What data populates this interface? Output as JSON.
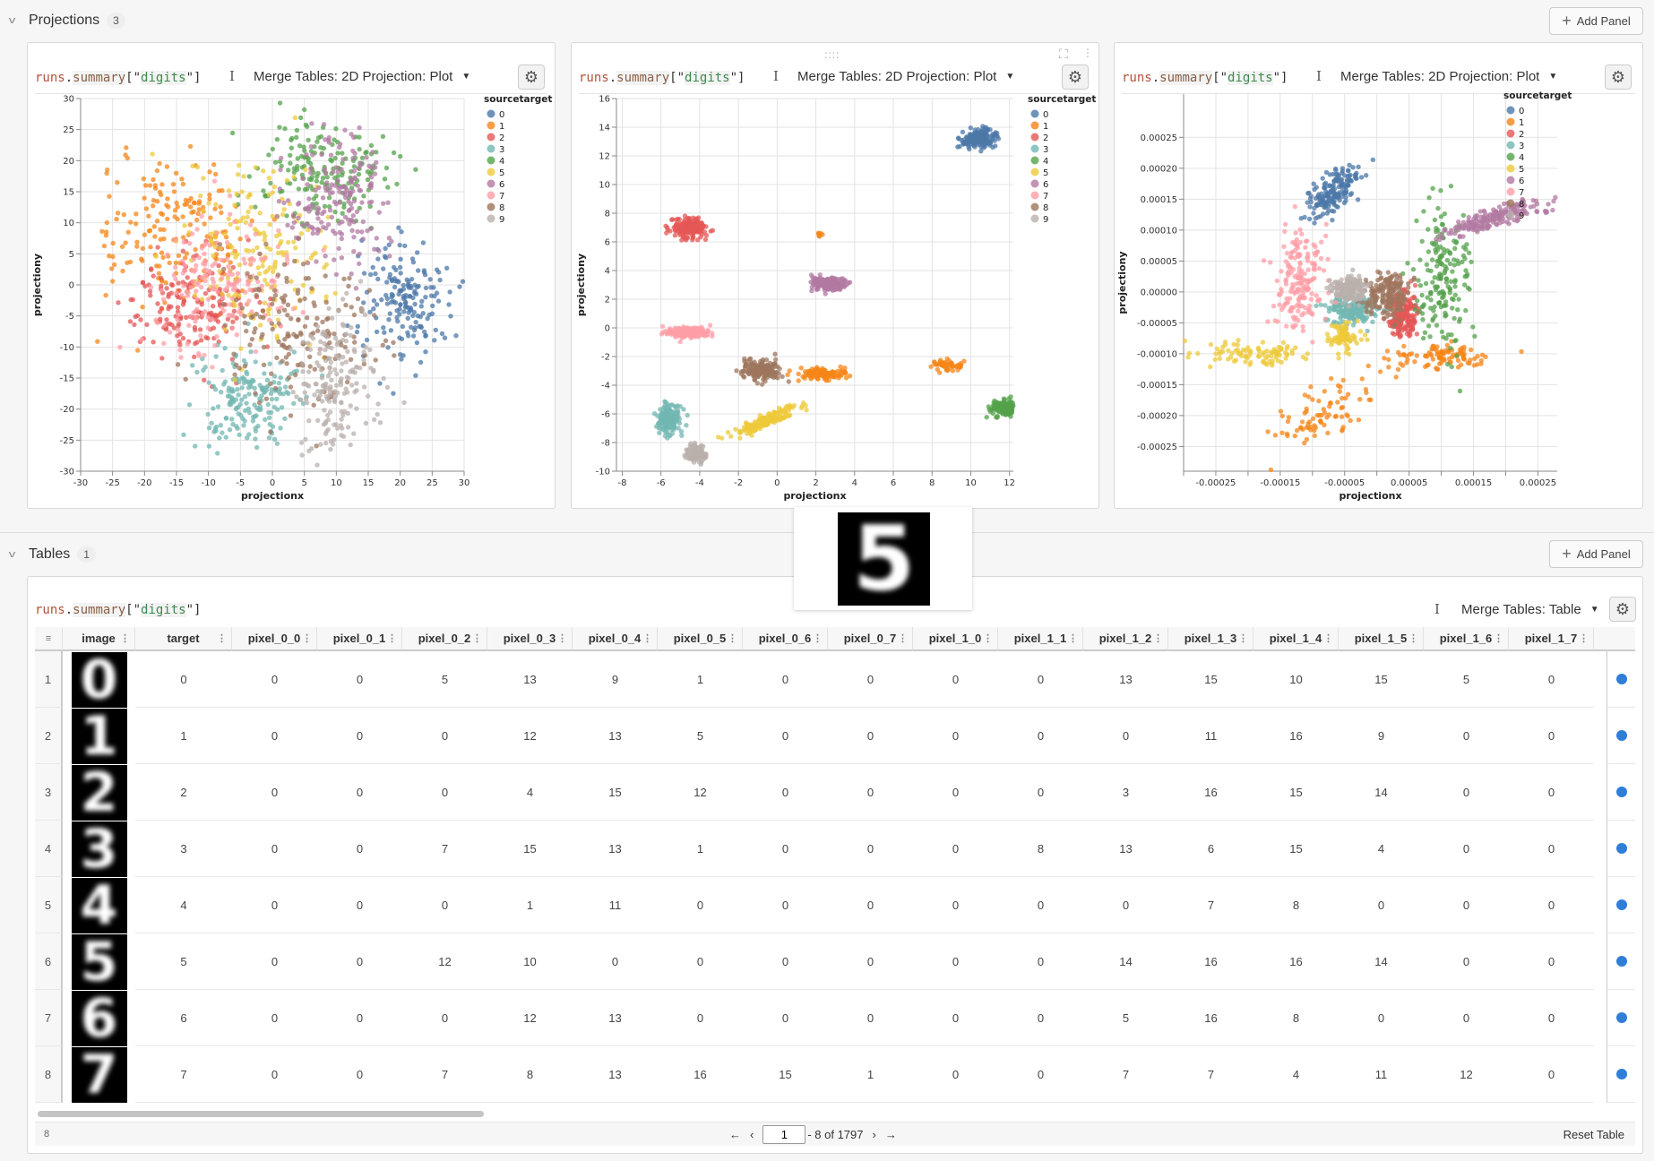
{
  "projections_section": {
    "title": "Projections",
    "count": "3",
    "add_panel_label": "Add Panel"
  },
  "tables_section": {
    "title": "Tables",
    "count": "1",
    "add_panel_label": "Add Panel"
  },
  "query": {
    "runs": "runs",
    "dot": ".",
    "summary": "summary",
    "open": "[\"",
    "key": "digits",
    "close": "\"]"
  },
  "plot_panel": {
    "mode_label": "Merge Tables: 2D Projection: Plot"
  },
  "table_panel": {
    "mode_label": "Merge Tables: Table",
    "reset_label": "Reset Table",
    "rows_icon_label": "8",
    "pagination": {
      "page": "1",
      "range_text": "- 8 of 1797"
    }
  },
  "colors": {
    "0": "#4c78a8",
    "1": "#f58518",
    "2": "#e45756",
    "3": "#72b7b2",
    "4": "#54a24b",
    "5": "#eeca3b",
    "6": "#b279a2",
    "7": "#ff9da6",
    "8": "#9d755d",
    "9": "#bab0ac",
    "accent": "#2f7ed8"
  },
  "tooltip": {
    "digit": "5"
  },
  "table": {
    "columns": [
      "image",
      "target",
      "pixel_0_0",
      "pixel_0_1",
      "pixel_0_2",
      "pixel_0_3",
      "pixel_0_4",
      "pixel_0_5",
      "pixel_0_6",
      "pixel_0_7",
      "pixel_1_0",
      "pixel_1_1",
      "pixel_1_2",
      "pixel_1_3",
      "pixel_1_4",
      "pixel_1_5",
      "pixel_1_6",
      "pixel_1_7"
    ],
    "rows": [
      {
        "n": "1",
        "target": "0",
        "pixels": [
          "0",
          "0",
          "5",
          "13",
          "9",
          "1",
          "0",
          "0",
          "0",
          "0",
          "13",
          "15",
          "10",
          "15",
          "5",
          "0"
        ]
      },
      {
        "n": "2",
        "target": "1",
        "pixels": [
          "0",
          "0",
          "0",
          "12",
          "13",
          "5",
          "0",
          "0",
          "0",
          "0",
          "0",
          "11",
          "16",
          "9",
          "0",
          "0"
        ]
      },
      {
        "n": "3",
        "target": "2",
        "pixels": [
          "0",
          "0",
          "0",
          "4",
          "15",
          "12",
          "0",
          "0",
          "0",
          "0",
          "3",
          "16",
          "15",
          "14",
          "0",
          "0"
        ]
      },
      {
        "n": "4",
        "target": "3",
        "pixels": [
          "0",
          "0",
          "7",
          "15",
          "13",
          "1",
          "0",
          "0",
          "0",
          "8",
          "13",
          "6",
          "15",
          "4",
          "0",
          "0"
        ]
      },
      {
        "n": "5",
        "target": "4",
        "pixels": [
          "0",
          "0",
          "0",
          "1",
          "11",
          "0",
          "0",
          "0",
          "0",
          "0",
          "0",
          "7",
          "8",
          "0",
          "0",
          "0"
        ]
      },
      {
        "n": "6",
        "target": "5",
        "pixels": [
          "0",
          "0",
          "12",
          "10",
          "0",
          "0",
          "0",
          "0",
          "0",
          "0",
          "14",
          "16",
          "16",
          "14",
          "0",
          "0"
        ]
      },
      {
        "n": "7",
        "target": "6",
        "pixels": [
          "0",
          "0",
          "0",
          "12",
          "13",
          "0",
          "0",
          "0",
          "0",
          "0",
          "5",
          "16",
          "8",
          "0",
          "0",
          "0"
        ]
      },
      {
        "n": "8",
        "target": "7",
        "pixels": [
          "0",
          "0",
          "7",
          "8",
          "13",
          "16",
          "15",
          "1",
          "0",
          "0",
          "7",
          "7",
          "4",
          "11",
          "12",
          "0"
        ]
      }
    ]
  },
  "chart_data": [
    {
      "type": "scatter",
      "xlabel": "projectionx",
      "ylabel": "projectiony",
      "legend_title": "sourcetarget",
      "legend": [
        "0",
        "1",
        "2",
        "3",
        "4",
        "5",
        "6",
        "7",
        "8",
        "9"
      ],
      "legend_placement": "right",
      "grid": true,
      "xlim": [
        -30,
        30
      ],
      "ylim": [
        -30,
        30
      ],
      "xticks": [
        "-30",
        "-25",
        "-20",
        "-15",
        "-10",
        "-5",
        "0",
        "5",
        "10",
        "15",
        "20",
        "25",
        "30"
      ],
      "xtick_values": [
        -30,
        -25,
        -20,
        -15,
        -10,
        -5,
        0,
        5,
        10,
        15,
        20,
        25,
        30
      ],
      "yticks": [
        "-30",
        "-25",
        "-20",
        "-15",
        "-10",
        "-5",
        "0",
        "5",
        "10",
        "15",
        "20",
        "25",
        "30"
      ],
      "ytick_values": [
        -30,
        -25,
        -20,
        -15,
        -10,
        -5,
        0,
        5,
        10,
        15,
        20,
        25,
        30
      ],
      "clusters": [
        {
          "class": 0,
          "cx": 21,
          "cy": -2,
          "sx": 3.5,
          "sy": 5,
          "n": 178
        },
        {
          "class": 1,
          "cx": -16,
          "cy": 8,
          "sx": 6,
          "sy": 6,
          "n": 182
        },
        {
          "class": 2,
          "cx": -13,
          "cy": -3,
          "sx": 5,
          "sy": 4,
          "n": 177
        },
        {
          "class": 3,
          "cx": -4,
          "cy": -18,
          "sx": 4,
          "sy": 4,
          "n": 183
        },
        {
          "class": 4,
          "cx": 8,
          "cy": 18,
          "sx": 5,
          "sy": 4.5,
          "n": 181
        },
        {
          "class": 5,
          "cx": -2,
          "cy": 5,
          "sx": 6,
          "sy": 7,
          "n": 182
        },
        {
          "class": 6,
          "cx": 10,
          "cy": 14,
          "sx": 4,
          "sy": 5,
          "n": 181
        },
        {
          "class": 7,
          "cx": -8,
          "cy": 0,
          "sx": 6,
          "sy": 5,
          "n": 179
        },
        {
          "class": 8,
          "cx": 3,
          "cy": -7,
          "sx": 6,
          "sy": 6,
          "n": 174
        },
        {
          "class": 9,
          "cx": 10,
          "cy": -16,
          "sx": 3,
          "sy": 5,
          "n": 180
        }
      ]
    },
    {
      "type": "scatter",
      "xlabel": "projectionx",
      "ylabel": "projectiony",
      "legend_title": "sourcetarget",
      "legend": [
        "0",
        "1",
        "2",
        "3",
        "4",
        "5",
        "6",
        "7",
        "8",
        "9"
      ],
      "legend_placement": "right",
      "grid": true,
      "xlim": [
        -8.3,
        12.2
      ],
      "ylim": [
        -10,
        16
      ],
      "xticks": [
        "-8",
        "-6",
        "-4",
        "-2",
        "0",
        "2",
        "4",
        "6",
        "8",
        "10",
        "12"
      ],
      "xtick_values": [
        -8,
        -6,
        -4,
        -2,
        0,
        2,
        4,
        6,
        8,
        10,
        12
      ],
      "yticks": [
        "-10",
        "-8",
        "-6",
        "-4",
        "-2",
        "0",
        "2",
        "4",
        "6",
        "8",
        "10",
        "12",
        "14",
        "16"
      ],
      "ytick_values": [
        -10,
        -8,
        -6,
        -4,
        -2,
        0,
        2,
        4,
        6,
        8,
        10,
        12,
        14,
        16
      ],
      "clusters": [
        {
          "class": 0,
          "cx": 10.4,
          "cy": 13.2,
          "sx": 0.5,
          "sy": 0.3,
          "n": 178
        },
        {
          "class": 1,
          "cx": 2.3,
          "cy": -3.2,
          "sx": 0.6,
          "sy": 0.2,
          "n": 120
        },
        {
          "class": 1,
          "cx": 8.8,
          "cy": -2.6,
          "sx": 0.4,
          "sy": 0.2,
          "n": 55
        },
        {
          "class": 1,
          "cx": 2.2,
          "cy": 6.5,
          "sx": 0.08,
          "sy": 0.08,
          "n": 7
        },
        {
          "class": 2,
          "cx": -4.5,
          "cy": 7,
          "sx": 0.5,
          "sy": 0.35,
          "n": 177
        },
        {
          "class": 3,
          "cx": -5.6,
          "cy": -6.3,
          "sx": 0.3,
          "sy": 0.5,
          "n": 183
        },
        {
          "class": 4,
          "cx": 11.8,
          "cy": -5.6,
          "sx": 0.35,
          "sy": 0.28,
          "n": 181
        },
        {
          "class": 5,
          "cx": -0.6,
          "cy": -6.5,
          "sx": 0.8,
          "sy": 0.5,
          "rho": 0.9,
          "n": 182
        },
        {
          "class": 6,
          "cx": 2.6,
          "cy": 3.1,
          "sx": 0.4,
          "sy": 0.22,
          "n": 181
        },
        {
          "class": 7,
          "cx": -4.6,
          "cy": -0.3,
          "sx": 0.55,
          "sy": 0.18,
          "n": 179
        },
        {
          "class": 8,
          "cx": -0.9,
          "cy": -2.9,
          "sx": 0.5,
          "sy": 0.35,
          "n": 174
        },
        {
          "class": 9,
          "cx": -4.2,
          "cy": -8.8,
          "sx": 0.22,
          "sy": 0.28,
          "n": 180
        }
      ]
    },
    {
      "type": "scatter",
      "xlabel": "projectionx",
      "ylabel": "projectiony",
      "legend_title": "sourcetarget",
      "legend": [
        "0",
        "1",
        "2",
        "3",
        "4",
        "5",
        "6",
        "7",
        "8",
        "9"
      ],
      "legend_placement": "right",
      "grid": true,
      "xlim": [
        -0.0003,
        0.00028
      ],
      "ylim": [
        -0.00029,
        0.00032
      ],
      "xticks": [
        "-0.00025",
        "-0.00015",
        "-0.00005",
        "0.00005",
        "0.00015",
        "0.00025"
      ],
      "xtick_values": [
        -0.00025,
        -0.00015,
        -5e-05,
        5e-05,
        0.00015,
        0.00025
      ],
      "yticks": [
        "-0.00025",
        "-0.00020",
        "-0.00015",
        "-0.00010",
        "-0.00005",
        "0.00000",
        "0.00005",
        "0.00010",
        "0.00015",
        "0.00020",
        "0.00025"
      ],
      "ytick_values": [
        -0.00025,
        -0.0002,
        -0.00015,
        -0.0001,
        -5e-05,
        0,
        5e-05,
        0.0001,
        0.00015,
        0.0002,
        0.00025
      ],
      "clusters": [
        {
          "class": 0,
          "cx": -7e-05,
          "cy": 0.00016,
          "sx": 2e-05,
          "sy": 2e-05,
          "rho": 0.6,
          "n": 178
        },
        {
          "class": 1,
          "cx": 0.0001,
          "cy": -0.000105,
          "sx": 4e-05,
          "sy": 1e-05,
          "n": 100
        },
        {
          "class": 1,
          "cx": -8e-05,
          "cy": -0.0002,
          "sx": 4e-05,
          "sy": 3e-05,
          "rho": 0.6,
          "n": 82
        },
        {
          "class": 2,
          "cx": 4e-05,
          "cy": -4e-05,
          "sx": 1.2e-05,
          "sy": 2e-05,
          "n": 177
        },
        {
          "class": 3,
          "cx": -4e-05,
          "cy": -3e-05,
          "sx": 2e-05,
          "sy": 1.3e-05,
          "n": 183
        },
        {
          "class": 4,
          "cx": 0.0001,
          "cy": 2e-05,
          "sx": 2.2e-05,
          "sy": 6e-05,
          "n": 181
        },
        {
          "class": 5,
          "cx": -0.0002,
          "cy": -0.0001,
          "sx": 5e-05,
          "sy": 1e-05,
          "n": 100
        },
        {
          "class": 5,
          "cx": -5e-05,
          "cy": -7.2e-05,
          "sx": 1.2e-05,
          "sy": 1e-05,
          "n": 82
        },
        {
          "class": 6,
          "cx": 0.00018,
          "cy": 0.00012,
          "sx": 4e-05,
          "sy": 1.5e-05,
          "rho": 0.8,
          "n": 181
        },
        {
          "class": 7,
          "cx": -0.00012,
          "cy": 2e-05,
          "sx": 2.2e-05,
          "sy": 4e-05,
          "n": 179
        },
        {
          "class": 8,
          "cx": 2e-05,
          "cy": -5e-06,
          "sx": 1.8e-05,
          "sy": 1.8e-05,
          "n": 174
        },
        {
          "class": 9,
          "cx": -4.5e-05,
          "cy": 5e-06,
          "sx": 1.2e-05,
          "sy": 1e-05,
          "n": 180
        }
      ]
    }
  ]
}
